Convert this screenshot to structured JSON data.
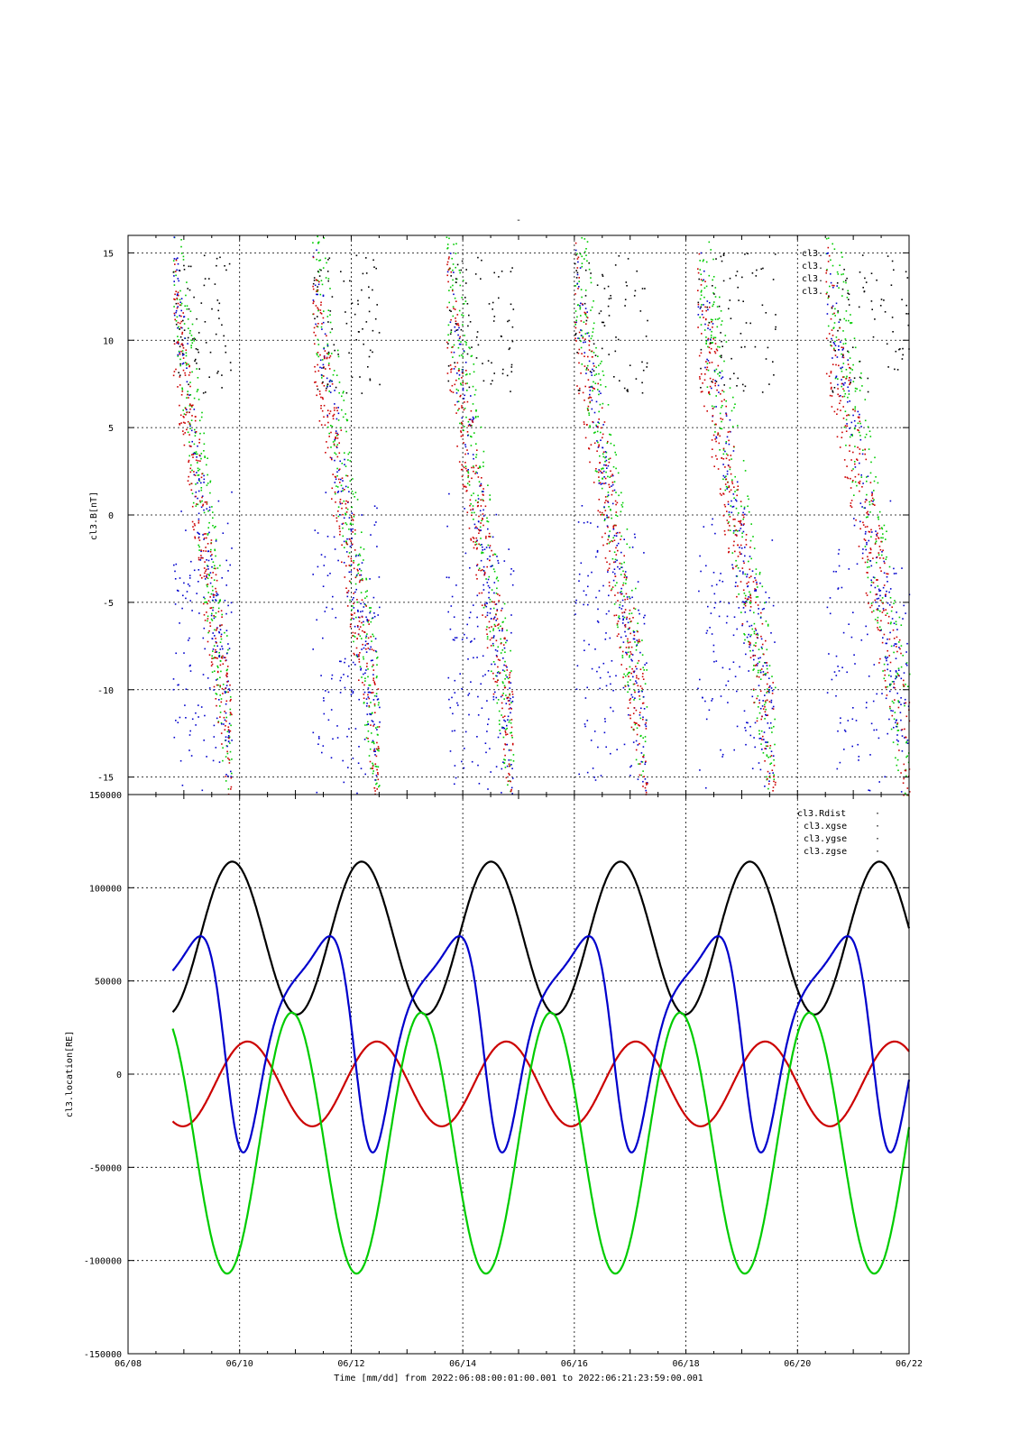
{
  "figure_title": "-",
  "colors": {
    "black": "#000000",
    "red": "#cc0000",
    "green": "#00cc00",
    "blue": "#0000cc"
  },
  "chart_data": [
    {
      "type": "scatter",
      "ylabel": "cl3.B[nT]",
      "ylim": [
        -16,
        16
      ],
      "yticks": [
        -15,
        -10,
        -5,
        0,
        5,
        10,
        15
      ],
      "ytick_labels": [
        "-15",
        "-10",
        "-5",
        "0",
        "5",
        "10",
        "15"
      ],
      "xlim_days": [
        0,
        14
      ],
      "grid": true,
      "legend_position": "top-right",
      "series": [
        {
          "name": "cl3.",
          "color": "black"
        },
        {
          "name": "cl3.",
          "color": "red"
        },
        {
          "name": "cl3.",
          "color": "green"
        },
        {
          "name": "cl3.",
          "color": "blue"
        }
      ],
      "segments": [
        {
          "start": 0.8,
          "end": 1.85
        },
        {
          "start": 3.3,
          "end": 4.5
        },
        {
          "start": 5.7,
          "end": 6.9
        },
        {
          "start": 8.0,
          "end": 9.3
        },
        {
          "start": 10.2,
          "end": 11.6
        },
        {
          "start": 12.5,
          "end": 14.0
        }
      ]
    },
    {
      "type": "line",
      "ylabel": "cl3.location[RE]",
      "xlabel": "Time [mm/dd]  from 2022:06:08:00:01:00.001  to  2022:06:21:23:59:00.001",
      "ylim": [
        -150000,
        150000
      ],
      "yticks": [
        -150000,
        -100000,
        -50000,
        0,
        50000,
        100000,
        150000
      ],
      "ytick_labels": [
        "-150000",
        "-100000",
        "-50000",
        "0",
        "50000",
        "100000",
        "150000"
      ],
      "xticks_days": [
        0,
        2,
        4,
        6,
        8,
        10,
        12,
        14
      ],
      "xtick_labels": [
        "06/08",
        "06/10",
        "06/12",
        "06/14",
        "06/16",
        "06/18",
        "06/20",
        "06/22"
      ],
      "xlim_days": [
        0,
        14
      ],
      "grid": true,
      "legend_position": "top-right",
      "series": [
        {
          "name": "cl3.Rdist",
          "color": "black",
          "symbol": "·"
        },
        {
          "name": "cl3.xgse",
          "color": "red",
          "symbol": "·"
        },
        {
          "name": "cl3.ygse",
          "color": "green",
          "symbol": "·"
        },
        {
          "name": "cl3.zgse",
          "color": "blue",
          "symbol": "·"
        }
      ],
      "orbit": {
        "start_day": 0.8,
        "period_days": 2.32,
        "apogee_phase": 0.54,
        "rdist_min": 32000,
        "rdist_max": 114000,
        "xgse_max": 17500,
        "xgse_min": -28000,
        "ygse_max": 33000,
        "ygse_min": -107000,
        "zgse_max": 74000,
        "zgse_min": -42000
      }
    }
  ]
}
